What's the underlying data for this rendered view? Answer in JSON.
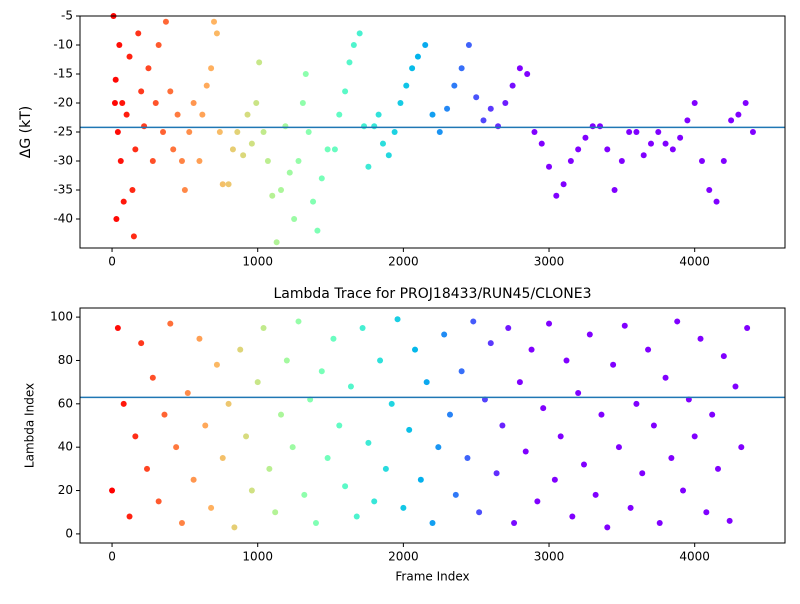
{
  "chart_data": [
    {
      "type": "scatter",
      "ylabel": "ΔG (kT)",
      "colormap": "rainbow_r",
      "color_limits": [
        0,
        2800
      ],
      "hline": -24.2,
      "hline_color": "#1f77b4",
      "xlim": [
        -220,
        4620
      ],
      "xticks": [
        0,
        1000,
        2000,
        3000,
        4000
      ],
      "ylim": [
        -45,
        -5
      ],
      "yticks": [
        -40,
        -35,
        -30,
        -25,
        -20,
        -15,
        -10,
        -5
      ],
      "x": [
        10,
        20,
        25,
        30,
        40,
        50,
        60,
        70,
        80,
        100,
        120,
        140,
        150,
        160,
        180,
        200,
        220,
        250,
        280,
        300,
        320,
        350,
        370,
        400,
        420,
        450,
        480,
        500,
        530,
        560,
        600,
        620,
        650,
        680,
        700,
        720,
        740,
        760,
        800,
        830,
        860,
        900,
        930,
        960,
        990,
        1010,
        1040,
        1070,
        1100,
        1130,
        1160,
        1190,
        1220,
        1250,
        1280,
        1310,
        1330,
        1350,
        1380,
        1410,
        1440,
        1480,
        1530,
        1560,
        1600,
        1630,
        1660,
        1700,
        1730,
        1760,
        1800,
        1830,
        1860,
        1900,
        1940,
        1980,
        2020,
        2060,
        2100,
        2150,
        2200,
        2250,
        2300,
        2350,
        2400,
        2450,
        2500,
        2550,
        2600,
        2650,
        2700,
        2750,
        2800,
        2850,
        2900,
        2950,
        3000,
        3050,
        3100,
        3150,
        3200,
        3250,
        3300,
        3350,
        3400,
        3450,
        3500,
        3550,
        3600,
        3650,
        3700,
        3750,
        3800,
        3850,
        3900,
        3950,
        4000,
        4050,
        4100,
        4150,
        4200,
        4250,
        4300,
        4350,
        4400
      ],
      "values": [
        -5,
        -20,
        -16,
        -40,
        -25,
        -10,
        -30,
        -20,
        -37,
        -22,
        -12,
        -35,
        -43,
        -28,
        -8,
        -18,
        -24,
        -14,
        -30,
        -20,
        -10,
        -25,
        -6,
        -18,
        -28,
        -22,
        -30,
        -35,
        -25,
        -20,
        -30,
        -22,
        -17,
        -14,
        -6,
        -8,
        -25,
        -34,
        -34,
        -28,
        -25,
        -29,
        -22,
        -27,
        -20,
        -13,
        -25,
        -30,
        -36,
        -44,
        -35,
        -24,
        -32,
        -40,
        -30,
        -20,
        -15,
        -25,
        -37,
        -42,
        -33,
        -28,
        -28,
        -22,
        -18,
        -13,
        -10,
        -8,
        -24,
        -31,
        -24,
        -22,
        -27,
        -29,
        -25,
        -20,
        -17,
        -14,
        -12,
        -10,
        -22,
        -25,
        -21,
        -17,
        -14,
        -10,
        -19,
        -23,
        -21,
        -24,
        -20,
        -17,
        -14,
        -15,
        -25,
        -27,
        -31,
        -36,
        -34,
        -30,
        -28,
        -26,
        -24,
        -24,
        -28,
        -35,
        -30,
        -25,
        -25,
        -29,
        -27,
        -25,
        -27,
        -28,
        -26,
        -23,
        -20,
        -30,
        -35,
        -37,
        -30,
        -23,
        -22,
        -20,
        -25
      ]
    },
    {
      "type": "scatter",
      "title": "Lambda Trace for PROJ18433/RUN45/CLONE3",
      "xlabel": "Frame Index",
      "ylabel": "Lambda Index",
      "colormap": "rainbow_r",
      "color_limits": [
        0,
        2800
      ],
      "hline": 63,
      "hline_color": "#1f77b4",
      "xlim": [
        -220,
        4620
      ],
      "xticks": [
        0,
        1000,
        2000,
        3000,
        4000
      ],
      "ylim": [
        -4.2,
        104.2
      ],
      "yticks": [
        0,
        20,
        40,
        60,
        80,
        100
      ],
      "x": [
        0,
        40,
        80,
        120,
        160,
        200,
        240,
        280,
        320,
        360,
        400,
        440,
        480,
        520,
        560,
        600,
        640,
        680,
        720,
        760,
        800,
        840,
        880,
        920,
        960,
        1000,
        1040,
        1080,
        1120,
        1160,
        1200,
        1240,
        1280,
        1320,
        1360,
        1400,
        1440,
        1480,
        1520,
        1560,
        1600,
        1640,
        1680,
        1720,
        1760,
        1800,
        1840,
        1880,
        1920,
        1960,
        2000,
        2040,
        2080,
        2120,
        2160,
        2200,
        2240,
        2280,
        2320,
        2360,
        2400,
        2440,
        2480,
        2520,
        2560,
        2600,
        2640,
        2680,
        2720,
        2760,
        2800,
        2840,
        2880,
        2920,
        2960,
        3000,
        3040,
        3080,
        3120,
        3160,
        3200,
        3240,
        3280,
        3320,
        3360,
        3400,
        3440,
        3480,
        3520,
        3560,
        3600,
        3640,
        3680,
        3720,
        3760,
        3800,
        3840,
        3880,
        3920,
        3960,
        4000,
        4040,
        4080,
        4120,
        4160,
        4200,
        4240,
        4280,
        4320,
        4360
      ],
      "values": [
        20,
        95,
        60,
        8,
        45,
        88,
        30,
        72,
        15,
        55,
        97,
        40,
        5,
        65,
        25,
        90,
        50,
        12,
        78,
        35,
        60,
        3,
        85,
        45,
        20,
        70,
        95,
        30,
        10,
        55,
        80,
        40,
        98,
        18,
        62,
        5,
        75,
        35,
        90,
        50,
        22,
        68,
        8,
        95,
        42,
        15,
        80,
        30,
        60,
        99,
        12,
        48,
        85,
        25,
        70,
        5,
        40,
        92,
        55,
        18,
        75,
        35,
        98,
        10,
        62,
        88,
        28,
        50,
        95,
        5,
        70,
        38,
        85,
        15,
        58,
        97,
        25,
        45,
        80,
        8,
        65,
        32,
        92,
        18,
        55,
        3,
        78,
        40,
        96,
        12,
        60,
        28,
        85,
        50,
        5,
        72,
        35,
        98,
        20,
        62,
        45,
        90,
        10,
        55,
        30,
        82,
        6,
        68,
        40,
        95
      ]
    }
  ]
}
